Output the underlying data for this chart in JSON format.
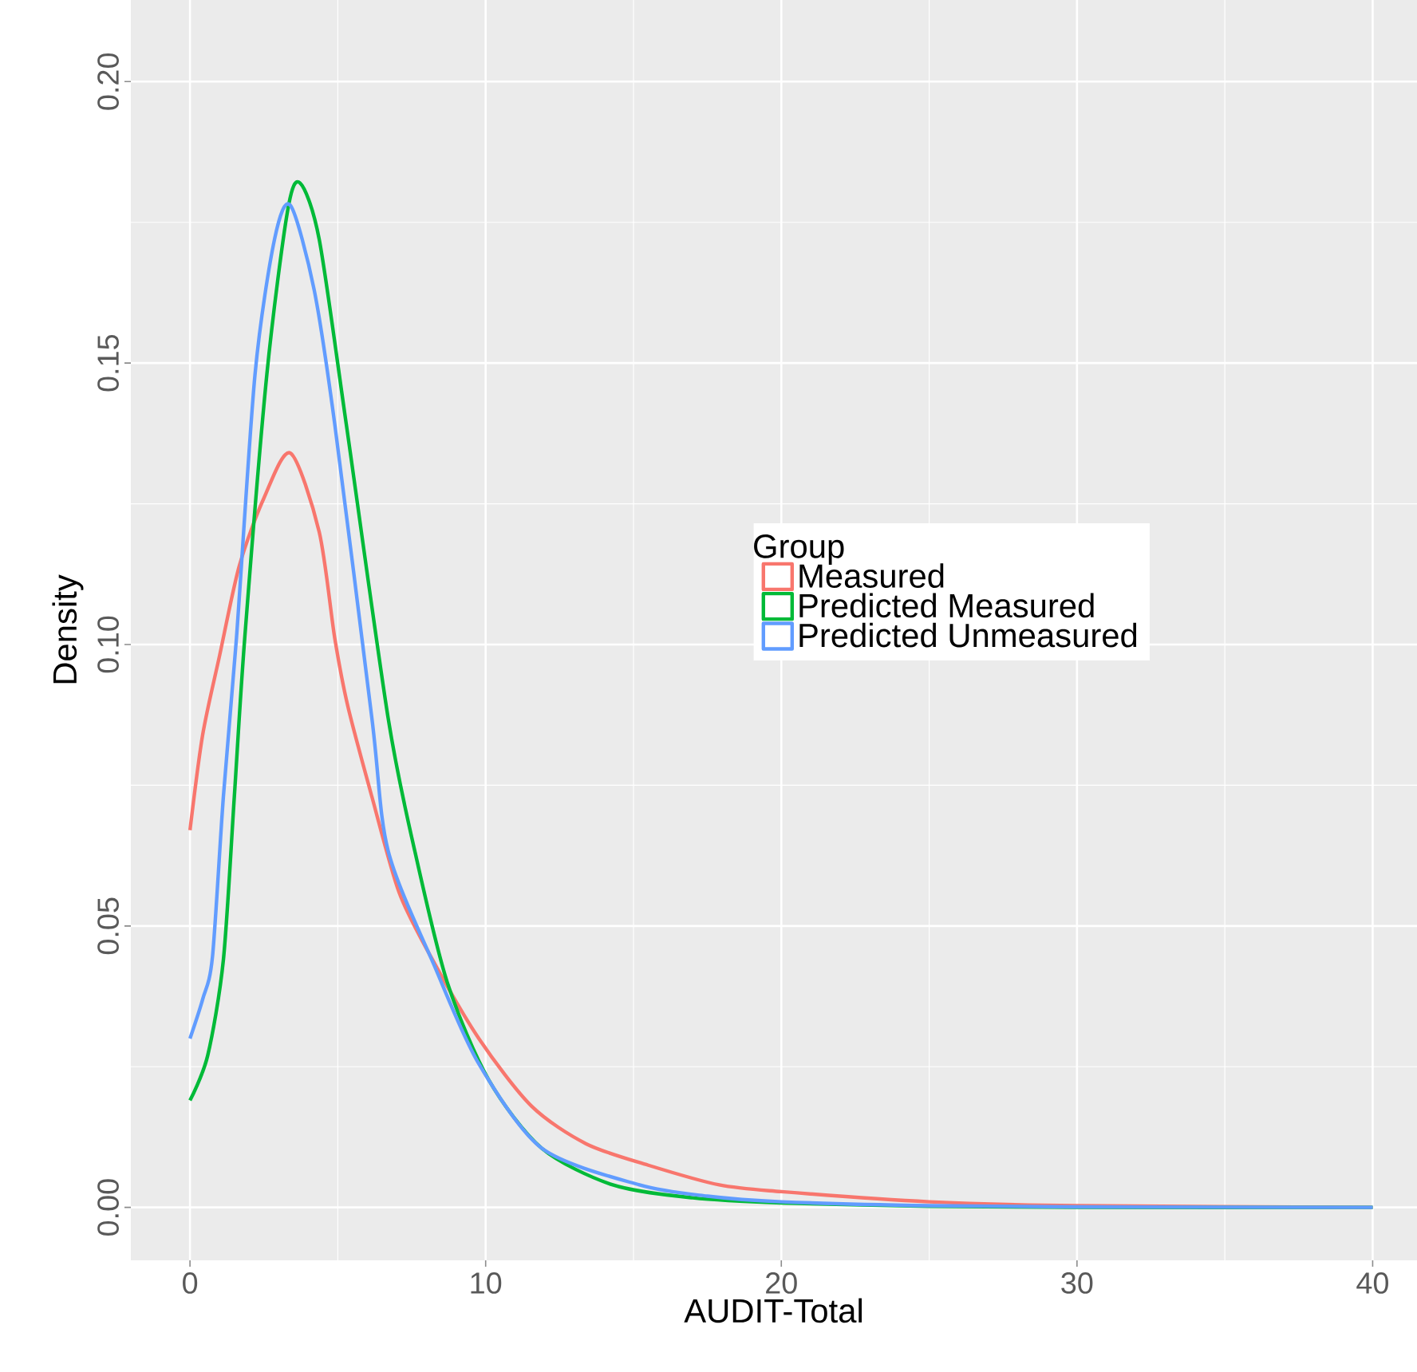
{
  "chart_data": {
    "type": "line",
    "xlabel": "AUDIT-Total",
    "ylabel": "Density",
    "legend_title": "Group",
    "legend": "right",
    "grid": true,
    "marker": "none",
    "line_style": "solid",
    "xlim": [
      -2,
      41.5
    ],
    "ylim": [
      -0.0094,
      0.2145
    ],
    "xticks": [
      0,
      10,
      20,
      30,
      40
    ],
    "yticks": [
      {
        "value": 0,
        "label": "0.00"
      },
      {
        "value": 0.05,
        "label": "0.05"
      },
      {
        "value": 0.1,
        "label": "0.10"
      },
      {
        "value": 0.15,
        "label": "0.15"
      },
      {
        "value": 0.2,
        "label": "0.20"
      }
    ],
    "series": [
      {
        "name": "Measured",
        "color": "#f8766d",
        "x": [
          0,
          0.43,
          1,
          1.67,
          2.5,
          3.4,
          4.37,
          4.9,
          5.34,
          6.15,
          7.07,
          8.15,
          9.77,
          11.55,
          13.4,
          15.5,
          17.9,
          20,
          25,
          30,
          35,
          40
        ],
        "values": [
          0.067,
          0.084,
          0.098,
          0.114,
          0.126,
          0.134,
          0.12,
          0.101,
          0.089,
          0.073,
          0.056,
          0.0445,
          0.03,
          0.018,
          0.0113,
          0.0075,
          0.004,
          0.0028,
          0.001,
          0.0003,
          null,
          0
        ]
      },
      {
        "name": "Predicted Measured",
        "color": "#00ba38",
        "x": [
          0,
          0.6,
          1.13,
          1.5,
          1.85,
          2.6,
          3.3,
          3.72,
          4.37,
          5.29,
          6.7,
          7.6,
          8.7,
          10.1,
          11.9,
          14.3,
          17,
          20,
          25,
          30,
          40
        ],
        "values": [
          0.019,
          0.027,
          0.044,
          0.073,
          0.101,
          0.148,
          0.177,
          0.182,
          0.172,
          0.139,
          0.087,
          0.0634,
          0.04,
          0.0227,
          0.0105,
          0.004,
          0.0017,
          0.0008,
          0.0002,
          0,
          0
        ]
      },
      {
        "name": "Predicted Unmeasured",
        "color": "#619cff",
        "x": [
          0,
          0.43,
          0.76,
          1.13,
          1.57,
          2.2,
          2.86,
          3.4,
          4.2,
          4.9,
          6.15,
          6.7,
          8.3,
          9.77,
          11.9,
          15.2,
          17.5,
          20,
          25,
          30,
          40
        ],
        "values": [
          0.03,
          0.037,
          0.0445,
          0.073,
          0.101,
          0.148,
          0.172,
          0.178,
          0.163,
          0.139,
          0.087,
          0.0634,
          0.0425,
          0.0255,
          0.0105,
          0.004,
          0.002,
          0.001,
          0.0003,
          0.0001,
          0
        ]
      }
    ]
  }
}
